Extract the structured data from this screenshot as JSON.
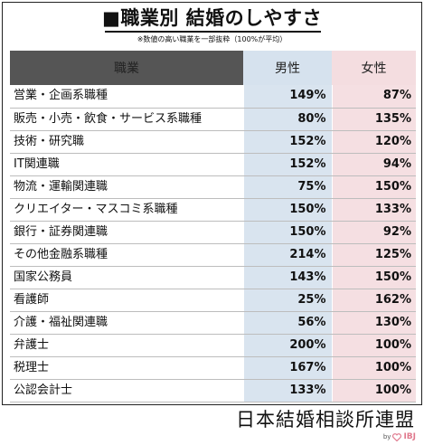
{
  "title": "■職業別 結婚のしやすさ",
  "note": "※数値の高い職業を一部抜粋（100%が平均）",
  "headers": {
    "job": "職業",
    "male": "男性",
    "female": "女性"
  },
  "rows": [
    {
      "job": "営業・企画系職種",
      "male": "149%",
      "female": "87%"
    },
    {
      "job": "販売・小売・飲食・サービス系職種",
      "male": "80%",
      "female": "135%"
    },
    {
      "job": "技術・研究職",
      "male": "152%",
      "female": "120%"
    },
    {
      "job": "IT関連職",
      "male": "152%",
      "female": "94%"
    },
    {
      "job": "物流・運輸関連職",
      "male": "75%",
      "female": "150%"
    },
    {
      "job": "クリエイター・マスコミ系職種",
      "male": "150%",
      "female": "133%"
    },
    {
      "job": "銀行・証券関連職",
      "male": "150%",
      "female": "92%"
    },
    {
      "job": "その他金融系職種",
      "male": "214%",
      "female": "125%"
    },
    {
      "job": "国家公務員",
      "male": "143%",
      "female": "150%"
    },
    {
      "job": "看護師",
      "male": "25%",
      "female": "162%"
    },
    {
      "job": "介護・福祉関連職",
      "male": "56%",
      "female": "130%"
    },
    {
      "job": "弁護士",
      "male": "200%",
      "female": "100%"
    },
    {
      "job": "税理士",
      "male": "167%",
      "female": "100%"
    },
    {
      "job": "公認会計士",
      "male": "133%",
      "female": "100%"
    }
  ],
  "footer": "日本結婚相談所連盟",
  "logo": {
    "by": "by",
    "brand": "IBJ",
    "brand_color": "#e07a8e"
  },
  "colors": {
    "header_dark": "#555555",
    "male_bg": "#d9e4ef",
    "female_bg": "#f5dfe2"
  }
}
